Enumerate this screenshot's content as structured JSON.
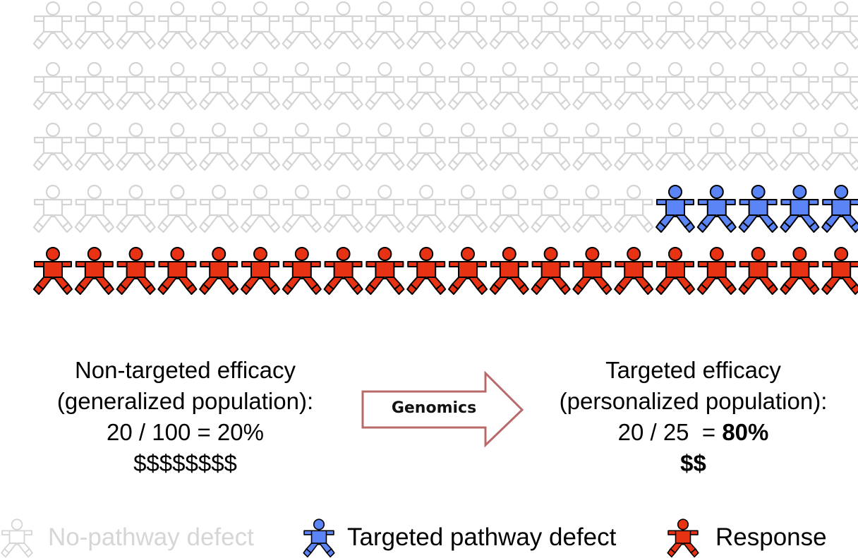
{
  "colors": {
    "no_defect_stroke": "#d4d4d4",
    "targeted_fill": "#5b84f7",
    "response_fill": "#e83214",
    "stroke_dark": "#000000",
    "arrow_stroke": "#b86a6a"
  },
  "population": {
    "columns": 20,
    "rows": [
      {
        "kind": "none",
        "count": 20
      },
      {
        "kind": "none",
        "count": 20
      },
      {
        "kind": "none",
        "count": 20
      },
      {
        "kind": "mixed",
        "none_count": 15,
        "targeted_count": 5
      },
      {
        "kind": "response",
        "count": 20
      }
    ]
  },
  "left": {
    "line1": "Non-targeted efficacy",
    "line2": "(generalized population):",
    "line3": "20 / 100 = 20%",
    "line4": "$$$$$$$$"
  },
  "arrow": {
    "label": "Genomics"
  },
  "right": {
    "line1": "Targeted efficacy",
    "line2": "(personalized population):",
    "line3_prefix": "20 / 25  = ",
    "line3_value": "80%",
    "line4": "$$"
  },
  "legend": {
    "none": "No-pathway defect",
    "targeted": "Targeted pathway defect",
    "response": "Response"
  }
}
